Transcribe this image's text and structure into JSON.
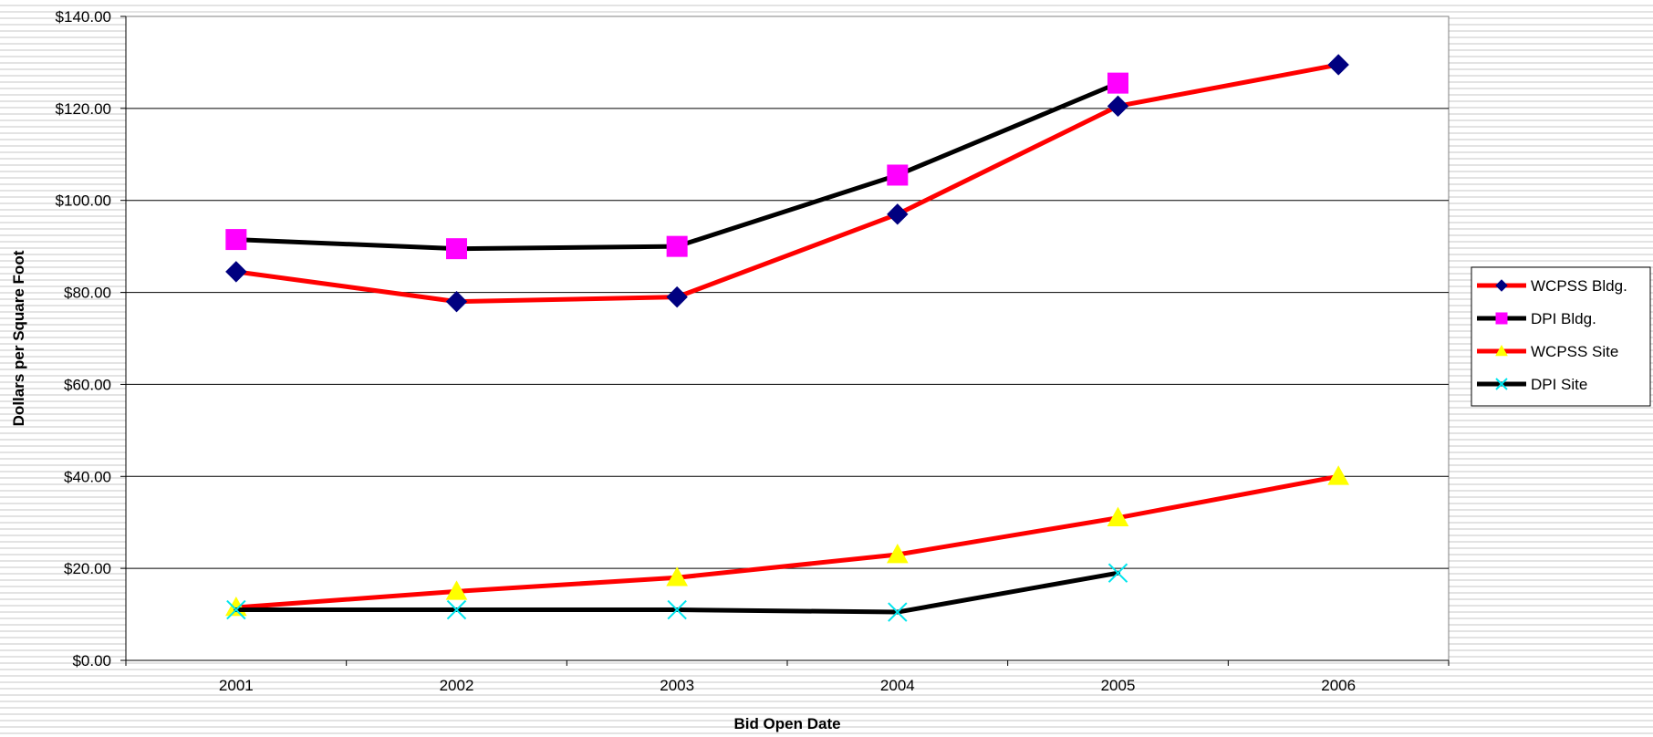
{
  "chart_data": {
    "type": "line",
    "title": "",
    "xlabel": "Bid Open Date",
    "ylabel": "Dollars per Square Foot",
    "categories": [
      "2001",
      "2002",
      "2003",
      "2004",
      "2005",
      "2006"
    ],
    "ylim": [
      0,
      140
    ],
    "yticks": [
      0,
      20,
      40,
      60,
      80,
      100,
      120,
      140
    ],
    "ytick_labels": [
      "$0.00",
      "$20.00",
      "$40.00",
      "$60.00",
      "$80.00",
      "$100.00",
      "$120.00",
      "$140.00"
    ],
    "grid": "horizontal",
    "legend_position": "right",
    "series": [
      {
        "name": "WCPSS Bldg.",
        "values": [
          84.5,
          78.0,
          79.0,
          97.0,
          120.5,
          129.5
        ],
        "line_color": "#ff0000",
        "marker": "diamond",
        "marker_color": "#000080"
      },
      {
        "name": "DPI Bldg.",
        "values": [
          91.5,
          89.5,
          90.0,
          105.5,
          125.5,
          null
        ],
        "line_color": "#000000",
        "marker": "square",
        "marker_color": "#ff00ff"
      },
      {
        "name": "WCPSS Site",
        "values": [
          11.5,
          15.0,
          18.0,
          23.0,
          31.0,
          40.0
        ],
        "line_color": "#ff0000",
        "marker": "triangle",
        "marker_color": "#ffff00"
      },
      {
        "name": "DPI Site",
        "values": [
          11.0,
          11.0,
          11.0,
          10.5,
          19.0,
          null
        ],
        "line_color": "#000000",
        "marker": "x",
        "marker_color": "#00e5ee"
      }
    ]
  }
}
